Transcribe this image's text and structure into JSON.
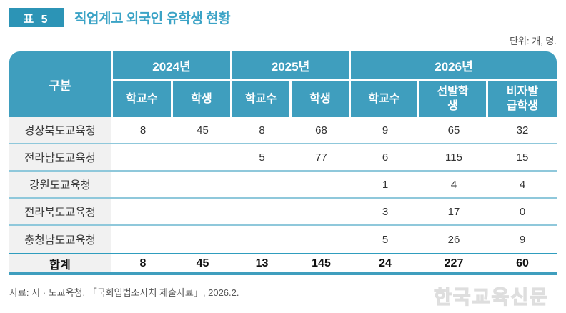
{
  "page": {
    "badge": "표 5",
    "title": "직업계고 외국인 유학생 현황",
    "unit_note": "단위: 개, 명.",
    "source": "자료: 시 · 도교육청, 「국회입법조사처 제출자료」, 2026.2.",
    "watermark": "한국교육신문"
  },
  "table_header": {
    "corner": "구분",
    "groups": [
      {
        "label": "2024년",
        "sub": [
          "학교수",
          "학생"
        ]
      },
      {
        "label": "2025년",
        "sub": [
          "학교수",
          "학생"
        ]
      },
      {
        "label": "2026년",
        "sub": [
          "학교수",
          "선발학생",
          "비자발급학생"
        ]
      }
    ]
  },
  "chart_data": {
    "type": "table",
    "title": "직업계고 외국인 유학생 현황",
    "unit": "개, 명",
    "columns": [
      "구분",
      "2024년 학교수",
      "2024년 학생",
      "2025년 학교수",
      "2025년 학생",
      "2026년 학교수",
      "2026년 선발학생",
      "2026년 비자발급학생"
    ],
    "rows": [
      [
        "경상북도교육청",
        8,
        45,
        8,
        68,
        9,
        65,
        32
      ],
      [
        "전라남도교육청",
        null,
        null,
        5,
        77,
        6,
        115,
        15
      ],
      [
        "강원도교육청",
        null,
        null,
        null,
        null,
        1,
        4,
        4
      ],
      [
        "전라북도교육청",
        null,
        null,
        null,
        null,
        3,
        17,
        0
      ],
      [
        "충청남도교육청",
        null,
        null,
        null,
        null,
        5,
        26,
        9
      ],
      [
        "합계",
        8,
        45,
        13,
        145,
        24,
        227,
        60
      ]
    ]
  },
  "colors": {
    "header_teal": "#3F9EBE",
    "badge_teal": "#2C94B6",
    "title_teal": "#3BA3C6",
    "row_separator": "#8FC8DB",
    "total_separator": "#2F9DBE",
    "label_bg": "#F1F1F1"
  }
}
